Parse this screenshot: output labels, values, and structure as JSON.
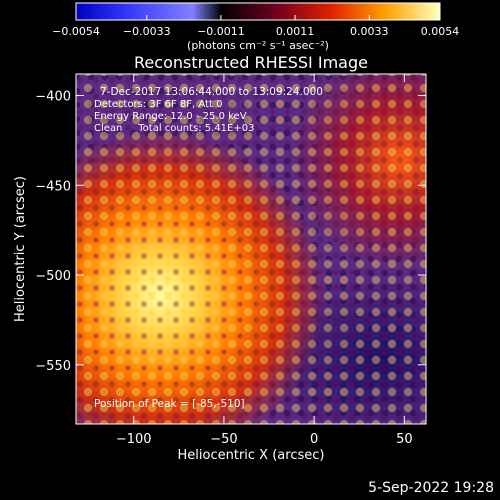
{
  "chart_data": {
    "type": "heatmap",
    "title": "Reconstructed RHESSI Image",
    "xlabel": "Heliocentric X (arcsec)",
    "ylabel": "Heliocentric Y (arcsec)",
    "xlim": [
      -132,
      62
    ],
    "ylim": [
      -583,
      -388
    ],
    "xticks": [
      -100,
      -50,
      0,
      50
    ],
    "xtick_labels": [
      "−100",
      "−50",
      "0",
      "50"
    ],
    "yticks": [
      -400,
      -450,
      -500,
      -550
    ],
    "ytick_labels": [
      "−400",
      "−450",
      "−500",
      "−550"
    ],
    "annotations": [
      "7-Dec-2017 13:06:44.000 to 13:09:24.000",
      "Detectors: 3F 6F 8F, Att 0",
      "Energy Range: 12.0 - 25.0 keV",
      "Clean     Total counts: 5.41E+03"
    ],
    "peak_label": "Position of Peak = [-85,-510]",
    "peak_position": [
      -85,
      -510
    ],
    "colorbar": {
      "min": -0.0054,
      "max": 0.0054,
      "ticks": [
        -0.0054,
        -0.0033,
        -0.0011,
        0.0011,
        0.0033,
        0.0054
      ],
      "tick_labels": [
        "−0.0054",
        "−0.0033",
        "−0.0011",
        "0.0011",
        "0.0033",
        "0.0054"
      ],
      "unit_label": "(photons cm⁻² s⁻¹ asec⁻²)"
    },
    "colors": {
      "negative_dark": "#000060",
      "negative_light": "#4040ff",
      "background": "#5a2a86",
      "mid": "#c02020",
      "high": "#ff8800",
      "peak": "#ffff80"
    },
    "grid": false
  },
  "footer": {
    "date_stamp": "5-Sep-2022 19:28"
  }
}
